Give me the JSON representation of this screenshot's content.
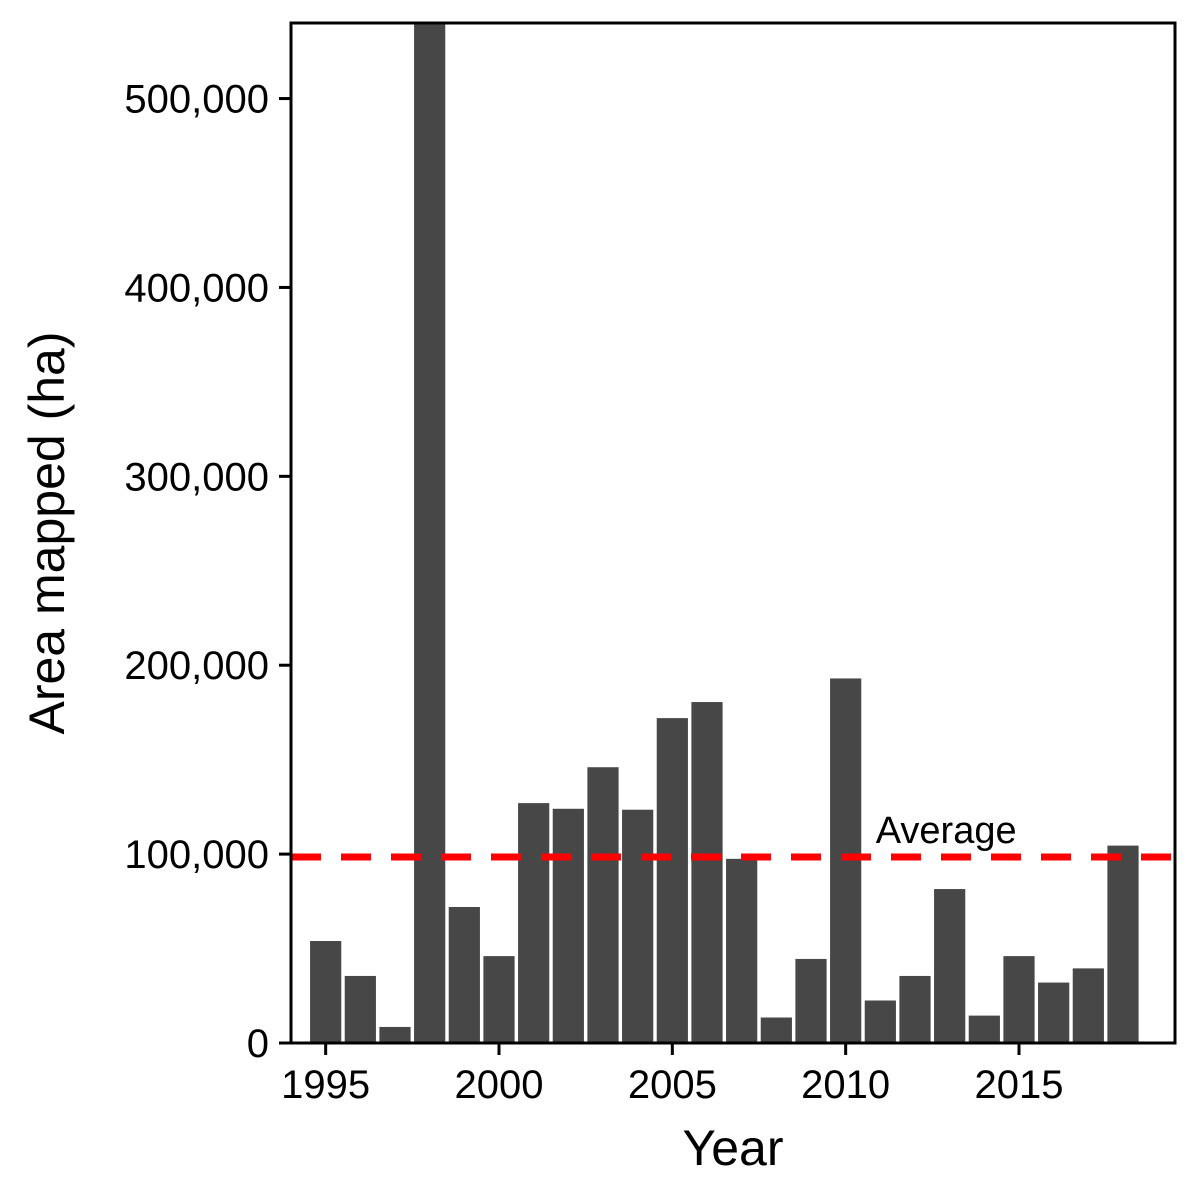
{
  "chart_data": {
    "type": "bar",
    "title": "",
    "xlabel": "Year",
    "ylabel": "Area mapped (ha)",
    "x": [
      1995,
      1996,
      1997,
      1998,
      1999,
      2000,
      2001,
      2002,
      2003,
      2004,
      2005,
      2006,
      2007,
      2008,
      2009,
      2010,
      2011,
      2012,
      2013,
      2014,
      2015,
      2016,
      2017,
      2018
    ],
    "values": [
      54000,
      35500,
      8500,
      540000,
      72000,
      46000,
      127000,
      124000,
      146000,
      123500,
      172000,
      180500,
      97500,
      13500,
      44500,
      193000,
      22500,
      35500,
      81500,
      14500,
      46000,
      32000,
      39500,
      104500
    ],
    "xlim": [
      1994.0,
      2019.5
    ],
    "ylim": [
      0,
      540000
    ],
    "x_ticks": [
      1995,
      2000,
      2005,
      2010,
      2015
    ],
    "x_tick_labels": [
      "1995",
      "2000",
      "2005",
      "2010",
      "2015"
    ],
    "y_ticks": [
      0,
      100000,
      200000,
      300000,
      400000,
      500000
    ],
    "y_tick_labels": [
      "0",
      "100,000",
      "200,000",
      "300,000",
      "400,000",
      "500,000"
    ],
    "bar_color": "#474747",
    "grid": false,
    "reference_line": {
      "value": 98500,
      "label": "Average",
      "color": "#ff0000",
      "style": "dashed"
    }
  }
}
